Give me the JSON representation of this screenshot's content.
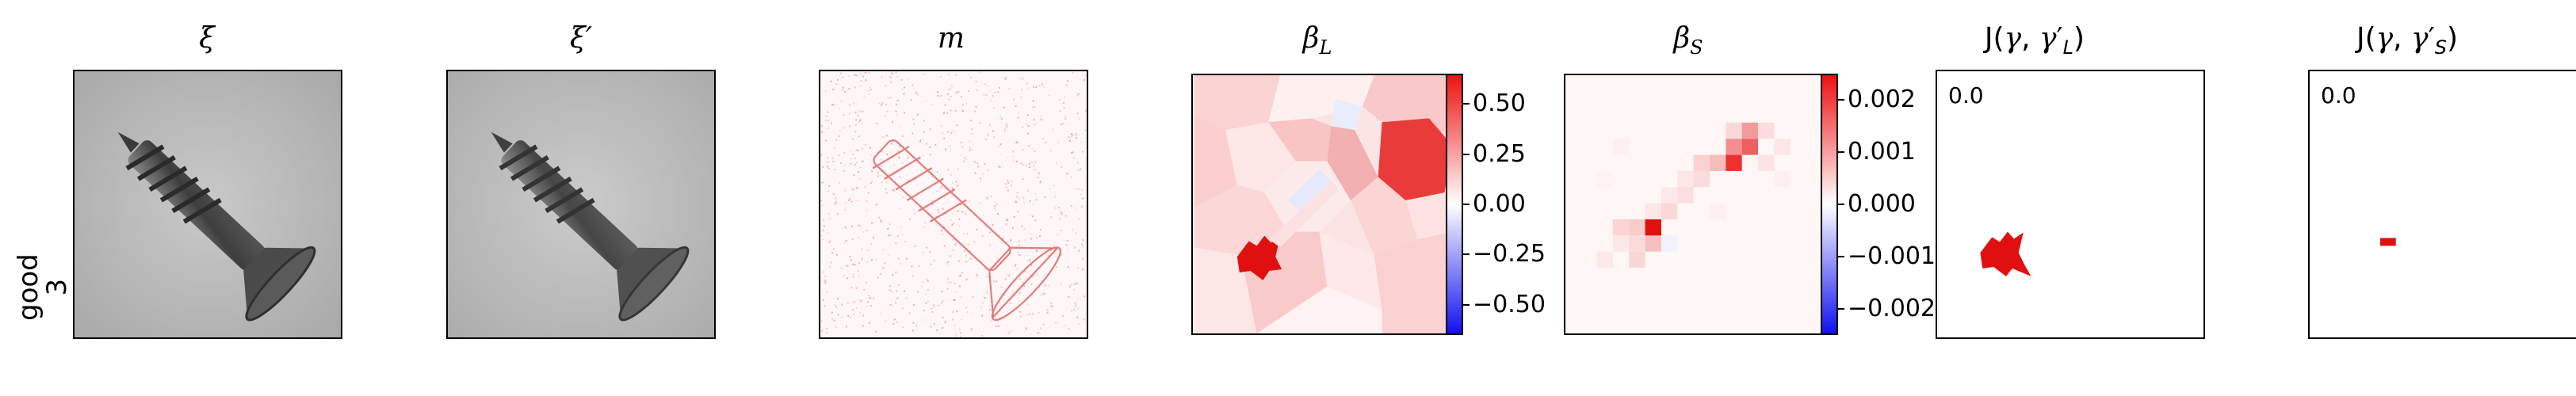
{
  "row_label": {
    "line1": "good",
    "line2": "3"
  },
  "panels": {
    "xi": {
      "title": "ξ"
    },
    "xip": {
      "title": "ξ′"
    },
    "m": {
      "title": "m"
    },
    "betaL": {
      "title": "βL"
    },
    "betaS": {
      "title": "βS"
    },
    "jL": {
      "title": "J(γ, γ′L)",
      "value_label": "0.0"
    },
    "jS": {
      "title": "J(γ, γ′S)",
      "value_label": "0.0"
    }
  },
  "colorbars": {
    "betaL": {
      "ticks": [
        "0.50",
        "0.25",
        "0.00",
        "−0.25",
        "−0.50"
      ],
      "range": [
        -0.65,
        0.65
      ]
    },
    "betaS": {
      "ticks": [
        "0.002",
        "0.001",
        "0.000",
        "−0.001",
        "−0.002"
      ],
      "range": [
        -0.0025,
        0.0025
      ]
    }
  },
  "colors": {
    "pos": "#ee1111",
    "neg": "#1111ee",
    "zero": "#ffffff"
  }
}
